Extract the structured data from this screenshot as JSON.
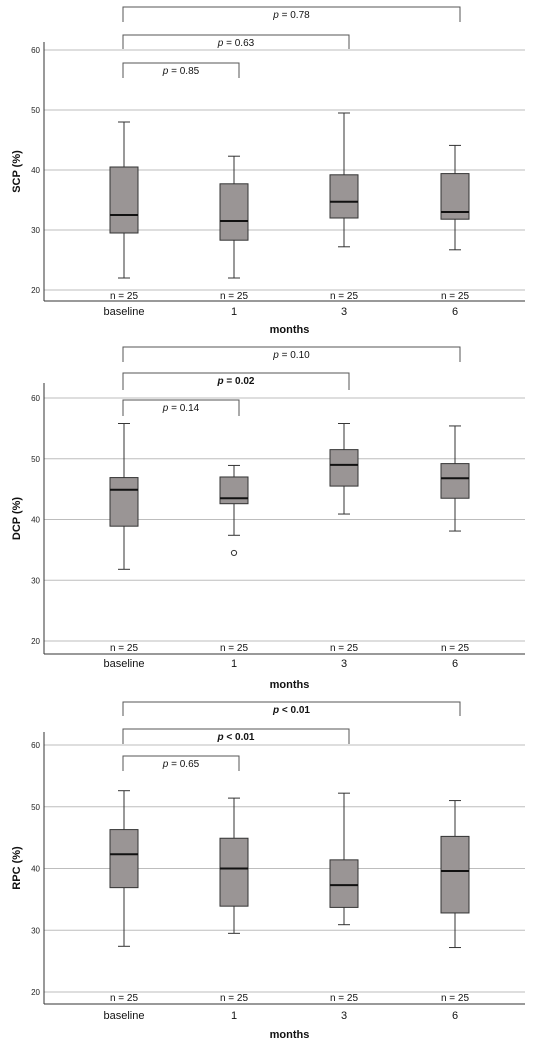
{
  "chart_data": [
    {
      "type": "box",
      "ylabel": "SCP (%)",
      "xlabel": "months",
      "ylim": [
        18,
        63
      ],
      "yticks": [
        20,
        30,
        40,
        50,
        60
      ],
      "categories": [
        "baseline",
        "1",
        "3",
        "6"
      ],
      "n_labels": [
        "n = 25",
        "n = 25",
        "n = 25",
        "n = 25"
      ],
      "boxes": [
        {
          "min": 22.0,
          "q1": 29.5,
          "median": 32.5,
          "q3": 40.5,
          "max": 48.0,
          "outliers": []
        },
        {
          "min": 22.0,
          "q1": 28.3,
          "median": 31.5,
          "q3": 37.7,
          "max": 42.3,
          "outliers": []
        },
        {
          "min": 27.2,
          "q1": 32.0,
          "median": 34.7,
          "q3": 39.2,
          "max": 49.5,
          "outliers": []
        },
        {
          "min": 26.7,
          "q1": 31.8,
          "median": 33.0,
          "q3": 39.4,
          "max": 44.1,
          "outliers": []
        }
      ],
      "comparisons": [
        {
          "from": 0,
          "to": 3,
          "label": "p = 0.78",
          "bold": false
        },
        {
          "from": 0,
          "to": 2,
          "label": "p = 0.63",
          "bold": false
        },
        {
          "from": 0,
          "to": 1,
          "label": "p = 0.85",
          "bold": false
        }
      ]
    },
    {
      "type": "box",
      "ylabel": "DCP (%)",
      "xlabel": "months",
      "ylim": [
        18,
        63
      ],
      "yticks": [
        20,
        30,
        40,
        50,
        60
      ],
      "categories": [
        "baseline",
        "1",
        "3",
        "6"
      ],
      "n_labels": [
        "n = 25",
        "n = 25",
        "n = 25",
        "n = 25"
      ],
      "boxes": [
        {
          "min": 31.8,
          "q1": 38.9,
          "median": 44.9,
          "q3": 46.9,
          "max": 55.8,
          "outliers": []
        },
        {
          "min": 37.4,
          "q1": 42.6,
          "median": 43.5,
          "q3": 47.0,
          "max": 48.9,
          "outliers": [
            34.5
          ]
        },
        {
          "min": 40.9,
          "q1": 45.5,
          "median": 49.0,
          "q3": 51.5,
          "max": 55.8,
          "outliers": []
        },
        {
          "min": 38.1,
          "q1": 43.5,
          "median": 46.8,
          "q3": 49.2,
          "max": 55.4,
          "outliers": []
        }
      ],
      "comparisons": [
        {
          "from": 0,
          "to": 3,
          "label": "p = 0.10",
          "bold": false
        },
        {
          "from": 0,
          "to": 2,
          "label": "p = 0.02",
          "bold": true
        },
        {
          "from": 0,
          "to": 1,
          "label": "p = 0.14",
          "bold": false
        }
      ]
    },
    {
      "type": "box",
      "ylabel": "RPC (%)",
      "xlabel": "months",
      "ylim": [
        18,
        63
      ],
      "yticks": [
        20,
        30,
        40,
        50,
        60
      ],
      "categories": [
        "baseline",
        "1",
        "3",
        "6"
      ],
      "n_labels": [
        "n = 25",
        "n = 25",
        "n = 25",
        "n = 25"
      ],
      "boxes": [
        {
          "min": 27.4,
          "q1": 36.9,
          "median": 42.3,
          "q3": 46.3,
          "max": 52.6,
          "outliers": []
        },
        {
          "min": 29.5,
          "q1": 33.9,
          "median": 40.0,
          "q3": 44.9,
          "max": 51.4,
          "outliers": []
        },
        {
          "min": 30.9,
          "q1": 33.7,
          "median": 37.3,
          "q3": 41.4,
          "max": 52.2,
          "outliers": []
        },
        {
          "min": 27.2,
          "q1": 32.8,
          "median": 39.6,
          "q3": 45.2,
          "max": 51.0,
          "outliers": []
        }
      ],
      "comparisons": [
        {
          "from": 0,
          "to": 3,
          "label": "p < 0.01",
          "bold": true
        },
        {
          "from": 0,
          "to": 2,
          "label": "p < 0.01",
          "bold": true
        },
        {
          "from": 0,
          "to": 1,
          "label": "p = 0.65",
          "bold": false
        }
      ]
    }
  ]
}
